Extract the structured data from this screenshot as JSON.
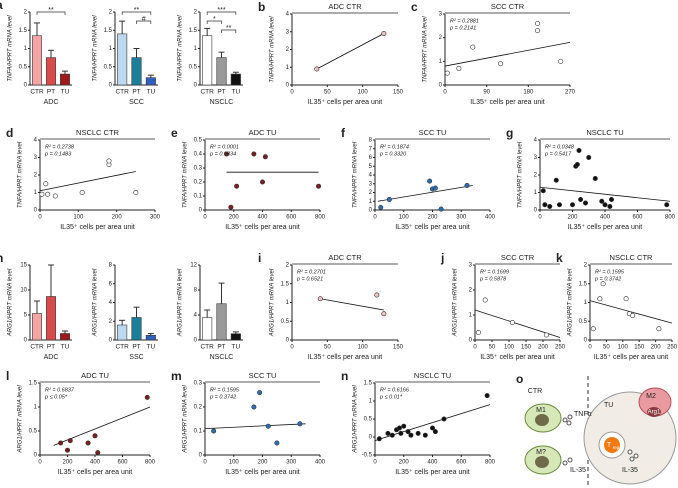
{
  "chart_data": [
    {
      "type": "bar",
      "panel": "a",
      "categories": [
        "CTR",
        "PT",
        "TU"
      ],
      "values": [
        1.35,
        0.75,
        0.3
      ],
      "errors": [
        0.35,
        0.2,
        0.08
      ],
      "colors": [
        "#f4a6a6",
        "#d94a4a",
        "#9e1a1a"
      ],
      "ylabel": "TNFA/HPRT mRNA level",
      "xlabel": "ADC",
      "ylim": [
        0,
        2
      ],
      "yticks": [
        0,
        0.5,
        1,
        1.5,
        2
      ],
      "brackets": [
        {
          "text": "**",
          "between": [
            "CTR",
            "TU"
          ]
        }
      ]
    },
    {
      "type": "bar",
      "categories": [
        "CTR",
        "PT",
        "TU"
      ],
      "values": [
        1.4,
        0.75,
        0.2
      ],
      "errors": [
        0.35,
        0.25,
        0.07
      ],
      "colors": [
        "#bcd9f0",
        "#1b7f9a",
        "#2f5fbf"
      ],
      "ylabel": "TNFA/HPRT mRNA level",
      "xlabel": "SCC",
      "ylim": [
        0,
        2
      ],
      "yticks": [
        0,
        0.5,
        1,
        1.5,
        2
      ],
      "brackets": [
        {
          "text": "**",
          "between": [
            "CTR",
            "TU"
          ]
        },
        {
          "text": "#",
          "between": [
            "PT",
            "TU"
          ]
        }
      ]
    },
    {
      "type": "bar",
      "categories": [
        "CTR",
        "PT",
        "TU"
      ],
      "values": [
        1.35,
        0.75,
        0.3
      ],
      "errors": [
        0.2,
        0.15,
        0.05
      ],
      "colors": [
        "#ffffff",
        "#999999",
        "#111111"
      ],
      "ylabel": "TNFA/HPRT mRNA level",
      "xlabel": "NSCLC",
      "ylim": [
        0,
        2
      ],
      "yticks": [
        0,
        0.5,
        1,
        1.5,
        2
      ],
      "brackets": [
        {
          "text": "***",
          "between": [
            "CTR",
            "TU"
          ]
        },
        {
          "text": "*",
          "between": [
            "CTR",
            "PT"
          ]
        },
        {
          "text": "**",
          "between": [
            "PT",
            "TU"
          ]
        }
      ]
    },
    {
      "type": "scatter",
      "panel": "b",
      "title": "ADC CTR",
      "x": [
        35,
        130
      ],
      "y": [
        0.9,
        2.9
      ],
      "fit_x": [
        35,
        130
      ],
      "fit_y": [
        0.9,
        2.9
      ],
      "color": "#f0c0c0",
      "ylabel": "TNFA/HPRT mRNA level",
      "xlabel": "IL35⁺ cells per area unit",
      "xlim": [
        0,
        150
      ],
      "xticks": [
        0,
        50,
        100,
        150
      ],
      "ylim": [
        0,
        4
      ],
      "yticks": [
        0,
        1,
        2,
        3,
        4
      ],
      "annotations": []
    },
    {
      "type": "scatter",
      "panel": "c",
      "title": "SCC CTR",
      "x": [
        5,
        30,
        60,
        120,
        200,
        200,
        250
      ],
      "y": [
        0.5,
        0.7,
        1.6,
        0.9,
        2.3,
        2.6,
        1.0
      ],
      "fit_x": [
        0,
        270
      ],
      "fit_y": [
        0.8,
        1.8
      ],
      "color": "#ffffff",
      "ylabel": "TNFA/HPRT mRNA level",
      "xlabel": "IL35⁺ cells per area unit",
      "xlim": [
        0,
        270
      ],
      "xticks": [
        0,
        90,
        180,
        270
      ],
      "ylim": [
        0,
        3
      ],
      "yticks": [
        0,
        1,
        2,
        3
      ],
      "annotations": [
        "R² = 0.2881",
        "p = 0.2141"
      ]
    },
    {
      "type": "scatter",
      "panel": "d",
      "title": "NSCLC CTR",
      "x": [
        5,
        15,
        20,
        40,
        110,
        180,
        180,
        250
      ],
      "y": [
        0.9,
        1.5,
        0.9,
        0.8,
        1.0,
        2.6,
        2.8,
        1.0
      ],
      "fit_x": [
        0,
        250
      ],
      "fit_y": [
        1.1,
        2.2
      ],
      "color": "#ffffff",
      "ylabel": "TNFA/HPRT mRNA level",
      "xlabel": "IL35⁺ cells per area unit",
      "xlim": [
        0,
        300
      ],
      "xticks": [
        0,
        100,
        200,
        300
      ],
      "ylim": [
        0,
        4
      ],
      "yticks": [
        0,
        1,
        2,
        3,
        4
      ],
      "annotations": [
        "R² = 0.2738",
        "p = 0.1483"
      ]
    },
    {
      "type": "scatter",
      "panel": "e",
      "title": "ADC TU",
      "x": [
        150,
        180,
        220,
        340,
        420,
        400,
        790
      ],
      "y": [
        0.4,
        0.02,
        0.17,
        0.4,
        0.38,
        0.2,
        0.17
      ],
      "fit_x": [
        150,
        790
      ],
      "fit_y": [
        0.27,
        0.27
      ],
      "color": "#7a1f1f",
      "ylabel": "TNFA/HPRT mRNA level",
      "xlabel": "IL35⁺ cells per area unit",
      "xlim": [
        0,
        800
      ],
      "xticks": [
        0,
        200,
        400,
        600,
        800
      ],
      "ylim": [
        0,
        0.5
      ],
      "yticks": [
        0,
        0.1,
        0.2,
        0.3,
        0.4,
        0.5
      ],
      "annotations": [
        "R² = 0.0001",
        "p = 0.9834"
      ]
    },
    {
      "type": "scatter",
      "panel": "f",
      "title": "SCC TU",
      "x": [
        20,
        50,
        200,
        210,
        190,
        230,
        320
      ],
      "y": [
        0.3,
        1.2,
        2.4,
        2.5,
        3.3,
        0.1,
        2.8
      ],
      "fit_x": [
        10,
        340
      ],
      "fit_y": [
        1.0,
        2.8
      ],
      "color": "#2c6fb5",
      "ylabel": "TNFA/HPRT mRNA level",
      "xlabel": "IL35⁺ cells per area unit",
      "xlim": [
        0,
        400
      ],
      "xticks": [
        0,
        100,
        200,
        300,
        400
      ],
      "ylim": [
        0,
        8
      ],
      "yticks": [
        0,
        1,
        2,
        3,
        4,
        5,
        6,
        7,
        8
      ],
      "annotations": [
        "R² = 0.1874",
        "p = 0.3320"
      ]
    },
    {
      "type": "scatter",
      "panel": "g",
      "title": "NSCLC TU",
      "x": [
        20,
        30,
        60,
        100,
        120,
        200,
        220,
        230,
        240,
        250,
        280,
        300,
        340,
        380,
        400,
        430,
        440,
        780
      ],
      "y": [
        1.1,
        0.3,
        0.2,
        1.7,
        0.3,
        0.3,
        2.5,
        2.6,
        3.4,
        0.6,
        0.4,
        3.0,
        1.8,
        0.5,
        0.3,
        0.2,
        0.6,
        0.3
      ],
      "fit_x": [
        0,
        800
      ],
      "fit_y": [
        1.3,
        0.5
      ],
      "color": "#111111",
      "ylabel": "TNFA/HPRT mRNA level",
      "xlabel": "IL35⁺ cells per area unit",
      "xlim": [
        0,
        800
      ],
      "xticks": [
        0,
        200,
        400,
        600,
        800
      ],
      "ylim": [
        0,
        4
      ],
      "yticks": [
        0,
        1,
        2,
        3,
        4
      ],
      "annotations": [
        "R² = 0.0348",
        "p = 0.5417"
      ]
    },
    {
      "type": "bar",
      "panel": "h",
      "categories": [
        "CTR",
        "PT",
        "TU"
      ],
      "values": [
        5.3,
        8.7,
        1.3
      ],
      "errors": [
        2.5,
        6.3,
        0.5
      ],
      "colors": [
        "#f4a6a6",
        "#d94a4a",
        "#9e1a1a"
      ],
      "ylabel": "ARG1/HPRT mRNA level",
      "xlabel": "ADC",
      "ylim": [
        0,
        15
      ],
      "yticks": [
        0,
        5,
        10,
        15
      ],
      "brackets": []
    },
    {
      "type": "bar",
      "categories": [
        "CTR",
        "PT",
        "TU"
      ],
      "values": [
        1.6,
        2.4,
        0.5
      ],
      "errors": [
        0.5,
        1.1,
        0.2
      ],
      "colors": [
        "#bcd9f0",
        "#1b7f9a",
        "#2f5fbf"
      ],
      "ylabel": "ARG1/HPRT mRNA level",
      "xlabel": "SSC",
      "ylim": [
        0,
        8
      ],
      "yticks": [
        0,
        2,
        4,
        6,
        8
      ],
      "brackets": []
    },
    {
      "type": "bar",
      "categories": [
        "CTR",
        "PT",
        "TU"
      ],
      "values": [
        3.6,
        5.8,
        1.0
      ],
      "errors": [
        1.2,
        3.3,
        0.3
      ],
      "colors": [
        "#ffffff",
        "#999999",
        "#111111"
      ],
      "ylabel": "ARG1/HPRT mRNA level",
      "xlabel": "NSCLC",
      "ylim": [
        0,
        12
      ],
      "yticks": [
        0,
        4,
        8,
        12
      ],
      "brackets": []
    },
    {
      "type": "scatter",
      "panel": "i",
      "title": "ADC CTR",
      "x": [
        40,
        120,
        130
      ],
      "y": [
        1.1,
        1.2,
        0.7
      ],
      "fit_x": [
        40,
        130
      ],
      "fit_y": [
        1.1,
        0.8
      ],
      "color": "#f0c0c0",
      "ylabel": "ARG1/HPRT mRNA level",
      "xlabel": "IL35⁺ cells per area unit",
      "xlim": [
        0,
        150
      ],
      "xticks": [
        0,
        50,
        100,
        150
      ],
      "ylim": [
        0,
        2
      ],
      "yticks": [
        0,
        0.5,
        1,
        1.5,
        2
      ],
      "annotations": [
        "R² = 0.2701",
        "p = 0.6521"
      ]
    },
    {
      "type": "scatter",
      "panel": "j",
      "title": "SCC CTR",
      "x": [
        10,
        30,
        110,
        210
      ],
      "y": [
        0.3,
        1.6,
        0.7,
        0.2
      ],
      "fit_x": [
        0,
        250
      ],
      "fit_y": [
        1.2,
        0.1
      ],
      "color": "#ffffff",
      "ylabel": "ARG1/HPRT mRNA level",
      "xlabel": "IL35⁺ cells per area unit",
      "xlim": [
        0,
        250
      ],
      "xticks": [
        0,
        50,
        100,
        150,
        200,
        250
      ],
      "ylim": [
        0,
        3
      ],
      "yticks": [
        0,
        1,
        2,
        3
      ],
      "annotations": [
        "R² = 0.1699",
        "p = 0.5878"
      ]
    },
    {
      "type": "scatter",
      "panel": "k",
      "title": "NSCLC CTR",
      "x": [
        10,
        30,
        40,
        110,
        120,
        130,
        210
      ],
      "y": [
        0.3,
        1.1,
        1.5,
        1.1,
        0.7,
        0.65,
        0.3
      ],
      "fit_x": [
        0,
        250
      ],
      "fit_y": [
        1.05,
        0.45
      ],
      "color": "#ffffff",
      "ylabel": "ARG1/HPRT mRNA level",
      "xlabel": "IL35⁺ cells per area unit",
      "xlim": [
        0,
        250
      ],
      "xticks": [
        0,
        50,
        100,
        150,
        200,
        250
      ],
      "ylim": [
        0,
        2
      ],
      "yticks": [
        0,
        0.5,
        1,
        1.5,
        2
      ],
      "annotations": [
        "R² = 0.1595",
        "p = 0.3742"
      ]
    },
    {
      "type": "scatter",
      "panel": "l",
      "title": "ADC TU",
      "x": [
        150,
        200,
        220,
        350,
        400,
        420,
        780
      ],
      "y": [
        0.25,
        0.1,
        0.3,
        0.25,
        0.4,
        0.05,
        1.2
      ],
      "fit_x": [
        100,
        800
      ],
      "fit_y": [
        0.2,
        1.0
      ],
      "color": "#7a1f1f",
      "ylabel": "ARG1/HPRT mRNA level",
      "xlabel": "IL35⁺ cells per area unit",
      "xlim": [
        0,
        800
      ],
      "xticks": [
        0,
        200,
        400,
        600,
        800
      ],
      "ylim": [
        0,
        1.5
      ],
      "yticks": [
        0,
        0.5,
        1,
        1.5
      ],
      "annotations": [
        "R² = 0.6837",
        "p ≤ 0.05*"
      ]
    },
    {
      "type": "scatter",
      "panel": "m",
      "title": "SCC TU",
      "x": [
        30,
        170,
        190,
        220,
        250,
        330
      ],
      "y": [
        0.1,
        0.2,
        0.26,
        0.12,
        0.05,
        0.13
      ],
      "fit_x": [
        0,
        350
      ],
      "fit_y": [
        0.11,
        0.13
      ],
      "color": "#2d6db4",
      "ylabel": "ARG1/HPRT mRNA level",
      "xlabel": "IL35⁺ cells per area unit",
      "xlim": [
        0,
        400
      ],
      "xticks": [
        0,
        100,
        200,
        300,
        400
      ],
      "ylim": [
        0,
        0.3
      ],
      "yticks": [
        0,
        0.1,
        0.2,
        0.3
      ],
      "annotations": [
        "R² = 0.1595",
        "p = 0.3742"
      ]
    },
    {
      "type": "scatter",
      "panel": "n",
      "title": "NSCLC TU",
      "x": [
        30,
        90,
        120,
        150,
        170,
        180,
        200,
        230,
        250,
        300,
        350,
        400,
        420,
        480,
        780
      ],
      "y": [
        -0.05,
        0.1,
        0.05,
        0.2,
        0.25,
        0.1,
        0.3,
        0.15,
        0.05,
        0.1,
        0.05,
        0.25,
        0.15,
        0.5,
        1.15
      ],
      "fit_x": [
        0,
        800
      ],
      "fit_y": [
        -0.1,
        0.9
      ],
      "color": "#111111",
      "ylabel": "ARG1/HPRT mRNA level",
      "xlabel": "IL35⁺ cells per area unit",
      "xlim": [
        0,
        800
      ],
      "xticks": [
        0,
        200,
        400,
        600,
        800
      ],
      "ylim": [
        -0.5,
        1.5
      ],
      "yticks": [
        -0.5,
        0,
        0.5,
        1,
        1.5
      ],
      "annotations": [
        "R² = 0.6166",
        "p ≤ 0.01*"
      ]
    }
  ],
  "diagram": {
    "panel": "o",
    "ctr": "CTR",
    "tu": "TU",
    "m1": "M1",
    "tnf": "TNFα",
    "mq": "M?",
    "il35a": "IL-35",
    "m2": "M2",
    "arg1": "Arg1",
    "treg": "T",
    "treg_sub": "reg",
    "il35b": "IL-35"
  }
}
